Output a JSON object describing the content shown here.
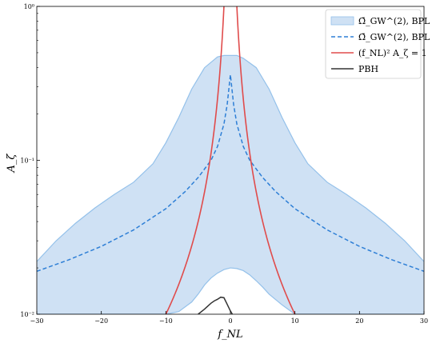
{
  "chart_data": {
    "type": "area",
    "xlabel": "f_NL",
    "ylabel": "A_ζ",
    "xlim": [
      -30,
      30
    ],
    "ylim": [
      0.01,
      1
    ],
    "yscale": "log",
    "grid": false,
    "legend_position": "top-right",
    "x_ticks": [
      "−30",
      "−20",
      "−10",
      "0",
      "10",
      "20",
      "30"
    ],
    "y_ticks": [
      "10⁻²",
      "10⁻¹",
      "10⁰"
    ],
    "colors": {
      "band_fill": "#cfe1f4",
      "band_edge": "#94c1ea",
      "dashed": "#2e7fd6",
      "constraint": "#e04b4b",
      "pbh": "#333333"
    },
    "legend": [
      {
        "label": "Ω̄_GW^(2), BPL",
        "style": "band"
      },
      {
        "label": "Ω̄_GW^(2), BPL",
        "style": "dashed"
      },
      {
        "label": "(f_NL)² A_ζ = 1",
        "style": "red-line"
      },
      {
        "label": "PBH",
        "style": "black-line"
      }
    ],
    "series": [
      {
        "kind": "band",
        "upper": {
          "x": [
            -30,
            -27,
            -24,
            -21,
            -18,
            -15,
            -12,
            -10,
            -8,
            -6,
            -4,
            -2,
            -1,
            0,
            1,
            2,
            4,
            6,
            8,
            10,
            12,
            15,
            18,
            21,
            24,
            27,
            30
          ],
          "y": [
            0.022,
            0.03,
            0.039,
            0.049,
            0.06,
            0.072,
            0.095,
            0.13,
            0.19,
            0.29,
            0.4,
            0.47,
            0.48,
            0.48,
            0.48,
            0.46,
            0.4,
            0.29,
            0.19,
            0.13,
            0.095,
            0.072,
            0.06,
            0.049,
            0.039,
            0.03,
            0.022
          ]
        },
        "lower": {
          "x": [
            -30,
            -10,
            -8,
            -6,
            -5,
            -4,
            -3,
            -2,
            -1,
            0,
            1,
            2,
            3,
            4,
            5,
            6,
            8,
            10,
            30
          ],
          "y": [
            0.01,
            0.01,
            0.0104,
            0.012,
            0.0135,
            0.0155,
            0.0172,
            0.0185,
            0.0195,
            0.02,
            0.0198,
            0.0192,
            0.018,
            0.0165,
            0.015,
            0.0135,
            0.0115,
            0.01,
            0.01
          ]
        }
      },
      {
        "kind": "dashed",
        "x": [
          -30,
          -25,
          -20,
          -15,
          -10,
          -7,
          -5,
          -3,
          -2,
          -1,
          -0.5,
          0,
          0.5,
          1,
          2,
          3,
          5,
          7,
          10,
          15,
          20,
          25,
          30
        ],
        "y": [
          0.019,
          0.0226,
          0.0276,
          0.0353,
          0.0485,
          0.0627,
          0.0773,
          0.1,
          0.123,
          0.172,
          0.23,
          0.36,
          0.23,
          0.172,
          0.123,
          0.1,
          0.0773,
          0.0627,
          0.0485,
          0.0353,
          0.0276,
          0.0226,
          0.019
        ]
      },
      {
        "kind": "constraint",
        "formula": "A_zeta = 1 / f_NL^2",
        "x_min": 1,
        "x_max": 10
      },
      {
        "kind": "pbh",
        "x": [
          -5,
          -4,
          -3,
          -2.5,
          -2,
          -1.5,
          -1,
          -0.5,
          0,
          0.3
        ],
        "y": [
          0.01,
          0.0108,
          0.0118,
          0.0122,
          0.0125,
          0.0129,
          0.0128,
          0.0116,
          0.0105,
          0.01
        ]
      }
    ]
  }
}
